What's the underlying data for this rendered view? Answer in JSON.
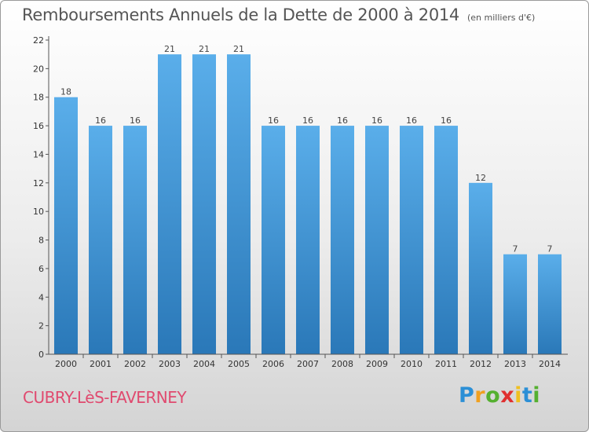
{
  "chart_data": {
    "type": "bar",
    "title": "Remboursements Annuels de la Dette de 2000 à 2014",
    "unit_label": "(en milliers d'€)",
    "categories": [
      "2000",
      "2001",
      "2002",
      "2003",
      "2004",
      "2005",
      "2006",
      "2007",
      "2008",
      "2009",
      "2010",
      "2011",
      "2012",
      "2013",
      "2014"
    ],
    "values": [
      18,
      16,
      16,
      21,
      21,
      21,
      16,
      16,
      16,
      16,
      16,
      16,
      12,
      7,
      7
    ],
    "value_labels": [
      "18",
      "16",
      "16",
      "21",
      "21",
      "21",
      "16",
      "16",
      "16",
      "16",
      "16",
      "16",
      "12",
      "7",
      "7"
    ],
    "ylim": [
      0,
      22
    ],
    "yticks": [
      0,
      2,
      4,
      6,
      8,
      10,
      12,
      14,
      16,
      18,
      20,
      22
    ],
    "ytick_labels": [
      "0",
      "2",
      "4",
      "6",
      "8",
      "10",
      "12",
      "14",
      "16",
      "18",
      "20",
      "22"
    ],
    "grid": false,
    "bar_color_top": "#5aaeea",
    "bar_color_bottom": "#2a78b8"
  },
  "commune": "CUBRY-LèS-FAVERNEY",
  "logo": {
    "letters": [
      "P",
      "r",
      "o",
      "x",
      "i",
      "t",
      "i"
    ],
    "colors": [
      "#2b8fd6",
      "#f0a020",
      "#55b030",
      "#e03030",
      "#f0c020",
      "#2b8fd6",
      "#55b030"
    ]
  }
}
